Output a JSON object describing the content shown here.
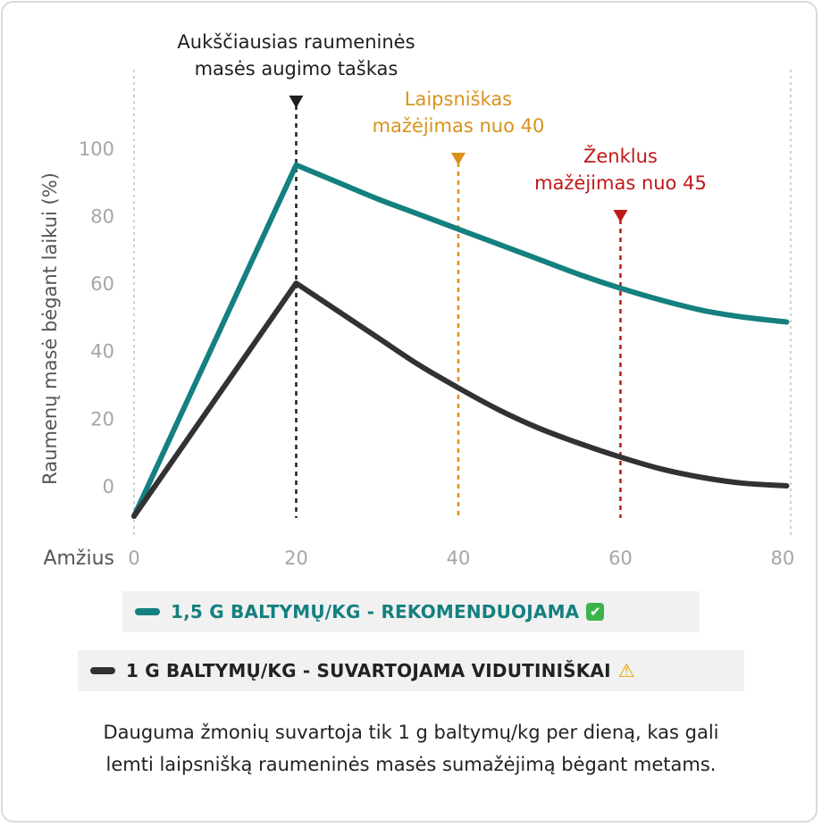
{
  "chart_data": {
    "type": "line",
    "xlabel": "Amžius",
    "ylabel": "Raumenų masė bėgant laikui (%)",
    "x_ticks": [
      "0",
      "20",
      "40",
      "60",
      "80"
    ],
    "y_ticks": [
      "0",
      "20",
      "40",
      "60",
      "80",
      "100"
    ],
    "xlim": [
      0,
      81
    ],
    "ylim": [
      -9,
      110
    ],
    "grid": false,
    "series": [
      {
        "name": "1,5 G BALTYMŲ/KG - REKOMENDUOJAMA",
        "color": "#14807f",
        "x": [
          0,
          5,
          10,
          15,
          20,
          25,
          30,
          35,
          40,
          45,
          50,
          55,
          60,
          65,
          70,
          75,
          80.5
        ],
        "y": [
          -9,
          17,
          43,
          69,
          95,
          90,
          85,
          80.5,
          76,
          71.5,
          67,
          62.5,
          58.5,
          55,
          52,
          50,
          48.5
        ]
      },
      {
        "name": "1 G BALTYMŲ/KG - SUVARTOJAMA VIDUTINIŠKAI",
        "color": "#323232",
        "x": [
          0,
          5,
          10,
          15,
          20,
          25,
          30,
          35,
          40,
          45,
          50,
          55,
          60,
          65,
          70,
          75,
          80.5
        ],
        "y": [
          -9,
          8,
          26,
          43,
          60,
          52,
          44,
          36,
          29,
          22.5,
          17,
          12.5,
          8.5,
          5,
          2.5,
          0.8,
          0
        ]
      }
    ],
    "annotations": [
      {
        "x": 20,
        "text_lines": [
          "Aukščiausias raumeninės",
          "masės augimo taškas"
        ],
        "color": "#1e1e1e"
      },
      {
        "x": 40,
        "text_lines": [
          "Laipsniškas",
          "mažėjimas nuo 40"
        ],
        "color": "#d8921c"
      },
      {
        "x": 60,
        "text_lines": [
          "Ženklus",
          "mažėjimas nuo 45"
        ],
        "color": "#c01818"
      }
    ]
  },
  "legend": {
    "recommended": {
      "label": "1,5 G BALTYMŲ/KG - REKOMENDUOJAMA",
      "badge": "✔",
      "color": "#14807f"
    },
    "average": {
      "label": "1 G BALTYMŲ/KG - SUVARTOJAMA VIDUTINIŠKAI",
      "badge": "⚠",
      "color": "#323232"
    }
  },
  "caption": {
    "line1": "Dauguma žmonių suvartoja tik 1 g baltymų/kg per dieną, kas gali",
    "line2": "lemti laipsnišką raumeninės masės sumažėjimą bėgant metams."
  }
}
